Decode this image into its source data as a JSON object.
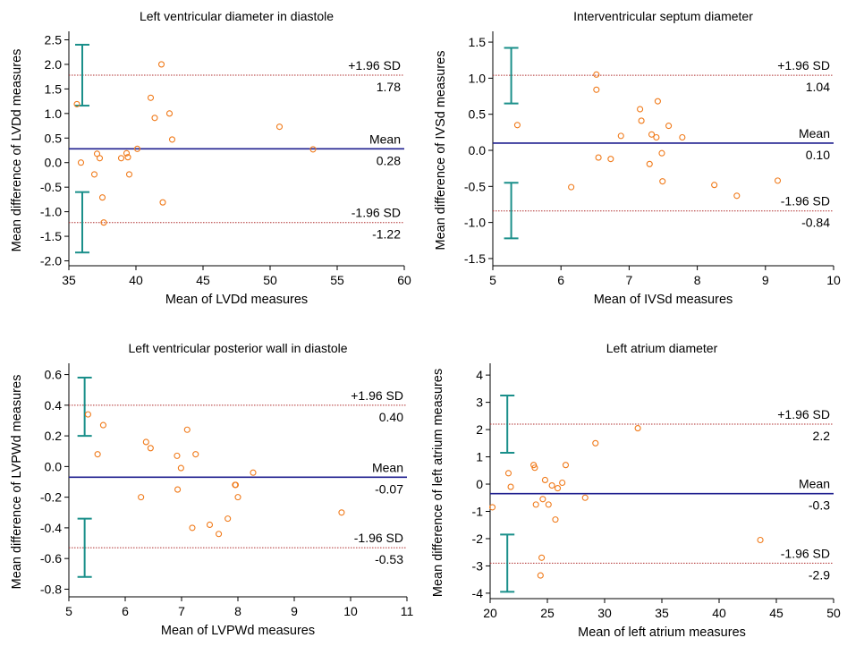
{
  "chart_data": [
    {
      "type": "scatter",
      "title": "Left ventricular diameter in diastole",
      "xlabel": "Mean of LVDd measures",
      "ylabel": "Mean difference of LVDd measures",
      "xlim": [
        35,
        60
      ],
      "ylim": [
        -2.1,
        2.6
      ],
      "xticks": [
        35,
        40,
        45,
        50,
        55,
        60
      ],
      "yticks": [
        -2.0,
        -1.5,
        -1.0,
        -0.5,
        0.0,
        0.5,
        1.0,
        1.5,
        2.0,
        2.5
      ],
      "tick_decimals": 1,
      "mean": {
        "value": 0.28,
        "label": "Mean",
        "value_text": "0.28"
      },
      "upper_loa": {
        "value": 1.78,
        "label": "+1.96 SD",
        "value_text": "1.78"
      },
      "lower_loa": {
        "value": -1.22,
        "label": "-1.96 SD",
        "value_text": "-1.22"
      },
      "upper_ci": [
        1.16,
        2.4
      ],
      "lower_ci": [
        -1.83,
        -0.6
      ],
      "ci_x": 36.0,
      "points": [
        [
          35.6,
          1.19
        ],
        [
          35.9,
          0.0
        ],
        [
          36.9,
          -0.24
        ],
        [
          37.1,
          0.18
        ],
        [
          37.3,
          0.09
        ],
        [
          37.5,
          -0.71
        ],
        [
          37.6,
          -1.22
        ],
        [
          38.9,
          0.09
        ],
        [
          39.3,
          0.19
        ],
        [
          39.4,
          0.11
        ],
        [
          39.5,
          -0.24
        ],
        [
          40.1,
          0.28
        ],
        [
          41.1,
          1.32
        ],
        [
          41.4,
          0.91
        ],
        [
          41.9,
          2.0
        ],
        [
          42.0,
          -0.81
        ],
        [
          42.5,
          1.0
        ],
        [
          42.7,
          0.47
        ],
        [
          50.7,
          0.73
        ],
        [
          53.2,
          0.27
        ]
      ]
    },
    {
      "type": "scatter",
      "title": "Interventricular septum diameter",
      "xlabel": "Mean of IVSd measures",
      "ylabel": "Mean difference of IVSd measures",
      "xlim": [
        5,
        10
      ],
      "ylim": [
        -1.6,
        1.6
      ],
      "xticks": [
        5,
        6,
        7,
        8,
        9,
        10
      ],
      "yticks": [
        -1.5,
        -1.0,
        -0.5,
        0.0,
        0.5,
        1.0,
        1.5
      ],
      "tick_decimals": 1,
      "mean": {
        "value": 0.1,
        "label": "Mean",
        "value_text": "0.10"
      },
      "upper_loa": {
        "value": 1.04,
        "label": "+1.96 SD",
        "value_text": "1.04"
      },
      "lower_loa": {
        "value": -0.84,
        "label": "-1.96 SD",
        "value_text": "-0.84"
      },
      "upper_ci": [
        0.65,
        1.42
      ],
      "lower_ci": [
        -1.22,
        -0.45
      ],
      "ci_x": 5.27,
      "points": [
        [
          5.36,
          0.35
        ],
        [
          6.15,
          -0.51
        ],
        [
          6.52,
          1.05
        ],
        [
          6.52,
          0.84
        ],
        [
          6.55,
          -0.1
        ],
        [
          6.73,
          -0.12
        ],
        [
          6.88,
          0.2
        ],
        [
          7.16,
          0.57
        ],
        [
          7.18,
          0.41
        ],
        [
          7.3,
          -0.19
        ],
        [
          7.33,
          0.22
        ],
        [
          7.4,
          0.18
        ],
        [
          7.42,
          0.68
        ],
        [
          7.48,
          -0.04
        ],
        [
          7.49,
          -0.43
        ],
        [
          7.58,
          0.34
        ],
        [
          7.78,
          0.18
        ],
        [
          8.25,
          -0.48
        ],
        [
          8.58,
          -0.63
        ],
        [
          9.18,
          -0.42
        ]
      ]
    },
    {
      "type": "scatter",
      "title": "Left ventricular posterior wall in diastole",
      "xlabel": "Mean of LVPWd measures",
      "ylabel": "Mean difference of LVPWd measures",
      "xlim": [
        5,
        11
      ],
      "ylim": [
        -0.85,
        0.65
      ],
      "xticks": [
        5,
        6,
        7,
        8,
        9,
        10,
        11
      ],
      "yticks": [
        -0.8,
        -0.6,
        -0.4,
        -0.2,
        0.0,
        0.2,
        0.4,
        0.6
      ],
      "tick_decimals": 1,
      "mean": {
        "value": -0.07,
        "label": "Mean",
        "value_text": "-0.07"
      },
      "upper_loa": {
        "value": 0.4,
        "label": "+1.96 SD",
        "value_text": "0.40"
      },
      "lower_loa": {
        "value": -0.53,
        "label": "-1.96 SD",
        "value_text": "-0.53"
      },
      "upper_ci": [
        0.2,
        0.58
      ],
      "lower_ci": [
        -0.72,
        -0.34
      ],
      "ci_x": 5.28,
      "points": [
        [
          5.34,
          0.34
        ],
        [
          5.51,
          0.08
        ],
        [
          5.61,
          0.27
        ],
        [
          6.28,
          -0.2
        ],
        [
          6.37,
          0.16
        ],
        [
          6.45,
          0.12
        ],
        [
          6.92,
          0.07
        ],
        [
          6.93,
          -0.15
        ],
        [
          6.99,
          -0.01
        ],
        [
          7.1,
          0.24
        ],
        [
          7.19,
          -0.4
        ],
        [
          7.25,
          0.08
        ],
        [
          7.5,
          -0.38
        ],
        [
          7.66,
          -0.44
        ],
        [
          7.82,
          -0.34
        ],
        [
          7.95,
          -0.12
        ],
        [
          7.96,
          -0.12
        ],
        [
          8.0,
          -0.2
        ],
        [
          8.27,
          -0.04
        ],
        [
          9.84,
          -0.3
        ]
      ]
    },
    {
      "type": "scatter",
      "title": "Left atrium diameter",
      "xlabel": "Mean of left atrium measures",
      "ylabel": "Mean difference of left atrium measures",
      "xlim": [
        20,
        50
      ],
      "ylim": [
        -4.2,
        4.3
      ],
      "xticks": [
        20,
        25,
        30,
        35,
        40,
        45,
        50
      ],
      "yticks": [
        -4,
        -3,
        -2,
        -1,
        0,
        1,
        2,
        3,
        4
      ],
      "tick_decimals": 0,
      "mean": {
        "value": -0.35,
        "label": "Mean",
        "value_text": "-0.3"
      },
      "upper_loa": {
        "value": 2.2,
        "label": "+1.96 SD",
        "value_text": "2.2"
      },
      "lower_loa": {
        "value": -2.9,
        "label": "-1.96 SD",
        "value_text": "-2.9"
      },
      "upper_ci": [
        1.15,
        3.25
      ],
      "lower_ci": [
        -3.95,
        -1.85
      ],
      "ci_x": 21.5,
      "points": [
        [
          20.2,
          -0.85
        ],
        [
          21.6,
          0.4
        ],
        [
          21.8,
          -0.1
        ],
        [
          23.8,
          0.7
        ],
        [
          23.9,
          0.6
        ],
        [
          24.0,
          -0.75
        ],
        [
          24.4,
          -3.35
        ],
        [
          24.5,
          -2.7
        ],
        [
          24.6,
          -0.55
        ],
        [
          24.8,
          0.15
        ],
        [
          25.1,
          -0.75
        ],
        [
          25.4,
          -0.05
        ],
        [
          25.7,
          -1.3
        ],
        [
          25.9,
          -0.15
        ],
        [
          26.3,
          0.05
        ],
        [
          26.6,
          0.7
        ],
        [
          28.3,
          -0.5
        ],
        [
          29.2,
          1.5
        ],
        [
          32.9,
          2.05
        ],
        [
          43.6,
          -2.05
        ]
      ]
    }
  ]
}
